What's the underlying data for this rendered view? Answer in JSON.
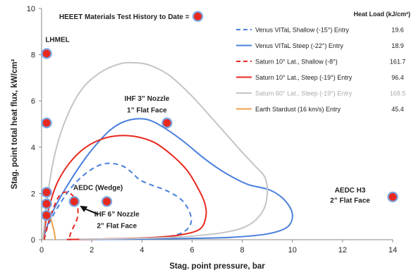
{
  "chart_data": {
    "type": "line",
    "xlabel": "Stag. point pressure, bar",
    "ylabel": "Stag. point total heat flux, kW/cm²",
    "xlim": [
      0,
      14
    ],
    "ylim": [
      0,
      10
    ],
    "x_ticks": [
      "0",
      "2",
      "4",
      "6",
      "8",
      "10",
      "12",
      "14"
    ],
    "y_ticks": [
      "0",
      "2",
      "4",
      "6",
      "8",
      "10"
    ],
    "grid": false,
    "legend": {
      "placement": "top-right",
      "heat_load_header": "Heat Load (kJ/cm²)"
    },
    "series": [
      {
        "name": "Venus VITaL Shallow (-15°) Entry",
        "heat_load": "19.6",
        "color": "#4a7fdc",
        "dash": true,
        "points": [
          [
            0.05,
            0.0
          ],
          [
            0.25,
            0.6
          ],
          [
            0.7,
            1.5
          ],
          [
            1.3,
            2.4
          ],
          [
            2.0,
            3.05
          ],
          [
            2.6,
            3.3
          ],
          [
            3.2,
            3.2
          ],
          [
            3.6,
            2.9
          ],
          [
            3.9,
            2.6
          ],
          [
            4.3,
            2.4
          ],
          [
            4.8,
            2.2
          ],
          [
            5.2,
            2.0
          ],
          [
            5.6,
            1.7
          ],
          [
            5.9,
            1.2
          ],
          [
            5.95,
            0.7
          ],
          [
            5.6,
            0.3
          ],
          [
            4.8,
            0.1
          ],
          [
            3.5,
            0.04
          ],
          [
            2.0,
            0.02
          ],
          [
            1.0,
            0.01
          ]
        ]
      },
      {
        "name": "Venus VITaL Steep (-22°) Entry",
        "heat_load": "18.9",
        "color": "#4a7fdc",
        "dash": false,
        "points": [
          [
            0.05,
            0.0
          ],
          [
            0.4,
            1.1
          ],
          [
            1.0,
            2.3
          ],
          [
            1.8,
            3.6
          ],
          [
            2.5,
            4.5
          ],
          [
            3.0,
            4.95
          ],
          [
            3.6,
            5.2
          ],
          [
            4.2,
            5.2
          ],
          [
            4.8,
            4.9
          ],
          [
            5.6,
            4.3
          ],
          [
            6.5,
            3.5
          ],
          [
            7.3,
            2.9
          ],
          [
            8.2,
            2.4
          ],
          [
            9.1,
            2.15
          ],
          [
            9.7,
            1.7
          ],
          [
            10.0,
            1.1
          ],
          [
            9.8,
            0.55
          ],
          [
            9.0,
            0.25
          ],
          [
            7.5,
            0.1
          ],
          [
            5.5,
            0.05
          ],
          [
            3.5,
            0.02
          ],
          [
            1.5,
            0.01
          ]
        ]
      },
      {
        "name": "Saturn 10° Lat., Shallow (-8°)",
        "heat_load": "161.7",
        "color": "#e8291f",
        "dash": true,
        "points": [
          [
            0.1,
            0.0
          ],
          [
            0.35,
            1.0
          ],
          [
            0.65,
            1.8
          ],
          [
            0.9,
            2.05
          ],
          [
            1.2,
            1.95
          ],
          [
            1.4,
            1.6
          ],
          [
            1.45,
            1.2
          ],
          [
            1.4,
            0.85
          ],
          [
            1.25,
            0.5
          ],
          [
            1.15,
            0.25
          ],
          [
            1.1,
            0.0
          ]
        ]
      },
      {
        "name": "Saturn 10° Lat., Steep (-19°) Entry",
        "heat_load": "96.4",
        "color": "#e8291f",
        "dash": false,
        "points": [
          [
            0.05,
            0.0
          ],
          [
            0.25,
            1.2
          ],
          [
            0.6,
            2.4
          ],
          [
            1.1,
            3.3
          ],
          [
            1.7,
            3.95
          ],
          [
            2.4,
            4.35
          ],
          [
            3.1,
            4.5
          ],
          [
            3.8,
            4.45
          ],
          [
            4.5,
            4.2
          ],
          [
            5.2,
            3.65
          ],
          [
            5.8,
            3.0
          ],
          [
            6.2,
            2.3
          ],
          [
            6.5,
            1.6
          ],
          [
            6.55,
            1.0
          ],
          [
            6.3,
            0.45
          ],
          [
            5.5,
            0.2
          ],
          [
            4.5,
            0.1
          ],
          [
            3.2,
            0.05
          ],
          [
            2.0,
            0.02
          ],
          [
            1.0,
            0.01
          ]
        ]
      },
      {
        "name": "Saturn 60° Lat., Steep (-19°) Entry",
        "heat_load": "168.5",
        "color": "#c4c4c4",
        "dash": false,
        "points": [
          [
            0.05,
            0.0
          ],
          [
            0.25,
            2.0
          ],
          [
            0.55,
            3.8
          ],
          [
            1.0,
            5.3
          ],
          [
            1.6,
            6.5
          ],
          [
            2.3,
            7.2
          ],
          [
            3.1,
            7.6
          ],
          [
            3.7,
            7.65
          ],
          [
            4.3,
            7.55
          ],
          [
            5.1,
            7.1
          ],
          [
            6.0,
            6.2
          ],
          [
            7.0,
            5.0
          ],
          [
            7.9,
            3.9
          ],
          [
            8.5,
            3.2
          ],
          [
            8.9,
            2.7
          ],
          [
            9.0,
            2.0
          ],
          [
            8.8,
            1.2
          ],
          [
            8.2,
            0.6
          ],
          [
            7.2,
            0.3
          ],
          [
            5.5,
            0.12
          ],
          [
            3.5,
            0.05
          ],
          [
            1.5,
            0.02
          ]
        ]
      },
      {
        "name": "Earth Stardust (16 km/s) Entry",
        "heat_load": "45.4",
        "color": "#f0a04b",
        "dash": false,
        "points": [
          [
            0.55,
            0.0
          ],
          [
            0.5,
            0.35
          ],
          [
            0.42,
            0.7
          ],
          [
            0.35,
            1.0
          ],
          [
            0.3,
            1.2
          ]
        ]
      }
    ],
    "test_points": [
      {
        "x": 0.2,
        "y": 8.05
      },
      {
        "x": 0.2,
        "y": 5.05
      },
      {
        "x": 0.2,
        "y": 2.05
      },
      {
        "x": 0.2,
        "y": 1.55
      },
      {
        "x": 0.2,
        "y": 1.05
      },
      {
        "x": 1.3,
        "y": 1.65
      },
      {
        "x": 2.6,
        "y": 1.65
      },
      {
        "x": 5.0,
        "y": 5.05
      },
      {
        "x": 14.0,
        "y": 1.85
      }
    ],
    "annotations": [
      {
        "text": "HEEET Materials Test History to Date =",
        "x": 0.7,
        "y": 9.55,
        "anchor": "start",
        "marker": true
      },
      {
        "text": "LHMEL",
        "x": 0.15,
        "y": 8.55,
        "anchor": "start"
      },
      {
        "text": "IHF 3” Nozzle",
        "x": 4.2,
        "y": 6.0,
        "anchor": "middle"
      },
      {
        "text": "1” Flat Face",
        "x": 4.2,
        "y": 5.5,
        "anchor": "middle"
      },
      {
        "text": "AEDC (Wedge)",
        "x": 2.25,
        "y": 2.15,
        "anchor": "middle"
      },
      {
        "text": "IHF 6” Nozzle",
        "x": 3.0,
        "y": 1.0,
        "anchor": "middle"
      },
      {
        "text": "2” Flat Face",
        "x": 3.0,
        "y": 0.5,
        "anchor": "middle"
      },
      {
        "text": "AEDC H3",
        "x": 12.3,
        "y": 2.05,
        "anchor": "middle"
      },
      {
        "text": "2” Flat Face",
        "x": 12.3,
        "y": 1.6,
        "anchor": "middle"
      }
    ]
  }
}
